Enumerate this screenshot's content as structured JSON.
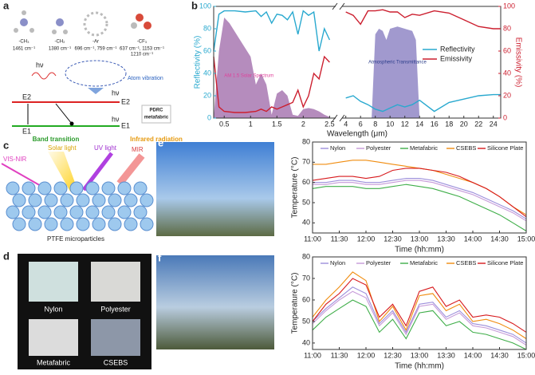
{
  "panel_a": {
    "label": "a",
    "groups": [
      "-CH₃",
      "-CH₂",
      "-Ar",
      "-CF₃"
    ],
    "wavenumbers": [
      "1461 cm⁻¹",
      "1380 cm⁻¹",
      "696 cm⁻¹, 759 cm⁻¹",
      "637 cm⁻¹, 1153 cm⁻¹",
      "1210 cm⁻¹"
    ],
    "hv": "hν",
    "atom_vibration": "Atom vibration",
    "e2": "E2",
    "e1": "E1",
    "band_transition": "Band transition",
    "pdrc": [
      "PDRC",
      "metafabric"
    ],
    "infrared": "Infrared radiation"
  },
  "panel_c": {
    "label": "c",
    "solar": "Solar light",
    "uv": "UV light",
    "mir": "MIR",
    "visnir": "VIS-NIR",
    "particles": "PTFE microparticles"
  },
  "panel_d": {
    "label": "d",
    "samples": [
      "Nylon",
      "Polyester",
      "Metafabric",
      "CSEBS"
    ]
  },
  "chart_data": [
    {
      "type": "line",
      "label": "b",
      "xlabel": "Wavelength (μm)",
      "ylabel": "Reflectivity (%)",
      "y2label": "Emissivity (%)",
      "xlim_segments": [
        [
          0.3,
          2.6
        ],
        [
          3.6,
          25
        ]
      ],
      "xticks": [
        0.5,
        1,
        1.5,
        2,
        2.5,
        4,
        6,
        8,
        10,
        12,
        14,
        16,
        18,
        20,
        22,
        24
      ],
      "ylim": [
        0,
        100
      ],
      "yticks": [
        0,
        20,
        40,
        60,
        80,
        100
      ],
      "y2lim": [
        0,
        100
      ],
      "y2ticks": [
        0,
        20,
        40,
        60,
        80,
        100
      ],
      "legend": "right",
      "series": [
        {
          "name": "Reflectivity",
          "color": "#29a9cf",
          "x": [
            0.3,
            0.4,
            0.5,
            0.7,
            0.9,
            1.1,
            1.2,
            1.3,
            1.4,
            1.5,
            1.6,
            1.7,
            1.8,
            1.9,
            2.0,
            2.1,
            2.2,
            2.3,
            2.4,
            2.5,
            4,
            5,
            6,
            7,
            8,
            9,
            10,
            11,
            12,
            13,
            14,
            16,
            18,
            20,
            22,
            24,
            25
          ],
          "values": [
            60,
            93,
            96,
            96,
            95,
            96,
            91,
            95,
            85,
            93,
            92,
            88,
            95,
            75,
            96,
            92,
            95,
            60,
            80,
            70,
            18,
            20,
            15,
            12,
            8,
            6,
            9,
            12,
            10,
            12,
            16,
            6,
            14,
            17,
            20,
            21,
            21
          ]
        },
        {
          "name": "Emissivity",
          "color": "#cc1f2f",
          "axis": "y2",
          "x": [
            0.3,
            0.4,
            0.5,
            0.7,
            0.9,
            1.1,
            1.2,
            1.3,
            1.4,
            1.5,
            1.6,
            1.7,
            1.8,
            1.9,
            2.0,
            2.1,
            2.2,
            2.3,
            2.4,
            2.5,
            4,
            5,
            6,
            7,
            8,
            9,
            10,
            11,
            12,
            13,
            14,
            16,
            18,
            20,
            22,
            24,
            25
          ],
          "values": [
            55,
            10,
            6,
            5,
            5,
            6,
            8,
            6,
            10,
            8,
            10,
            12,
            14,
            25,
            10,
            20,
            40,
            35,
            55,
            50,
            95,
            92,
            84,
            96,
            96,
            97,
            95,
            95,
            90,
            93,
            92,
            96,
            94,
            88,
            82,
            80,
            80
          ]
        }
      ],
      "areas": [
        {
          "label": "AM 1.5 Solar Spectrum",
          "color": "#8e4f9a",
          "x": [
            0.3,
            0.4,
            0.5,
            0.6,
            0.8,
            1.0,
            1.1,
            1.2,
            1.3,
            1.4,
            1.5,
            1.6,
            1.7,
            1.8,
            1.9,
            2.0,
            2.1,
            2.2,
            2.3,
            2.4,
            2.5
          ],
          "values": [
            0,
            60,
            90,
            85,
            70,
            55,
            30,
            40,
            30,
            3,
            22,
            25,
            20,
            3,
            2,
            8,
            9,
            8,
            6,
            3,
            1
          ]
        },
        {
          "label": "Atmospheric Transmittance",
          "color": "#6f63b3",
          "x": [
            7.5,
            8,
            8.5,
            9,
            9.5,
            10,
            11,
            12,
            13,
            13.5,
            14
          ],
          "values": [
            0,
            75,
            80,
            78,
            70,
            80,
            82,
            80,
            78,
            70,
            0
          ]
        }
      ]
    },
    {
      "type": "line",
      "label": "e",
      "xlabel": "Time (hh:mm)",
      "ylabel": "Temperature (°C)",
      "xlim": [
        "11:00",
        "15:00"
      ],
      "xticks": [
        "11:00",
        "11:30",
        "12:00",
        "12:30",
        "13:00",
        "13:30",
        "14:00",
        "14:30",
        "15:00"
      ],
      "ylim": [
        35,
        80
      ],
      "yticks": [
        40,
        50,
        60,
        70,
        80
      ],
      "legend": "top",
      "x": [
        "11:00",
        "11:15",
        "11:30",
        "11:45",
        "12:00",
        "12:15",
        "12:30",
        "12:45",
        "13:00",
        "13:15",
        "13:30",
        "13:45",
        "14:00",
        "14:15",
        "14:30",
        "14:45",
        "15:00"
      ],
      "series": [
        {
          "name": "Nylon",
          "color": "#9d8fdb",
          "values": [
            60,
            60,
            61,
            61,
            60,
            60,
            61,
            62,
            62,
            61,
            59,
            57,
            55,
            52,
            49,
            46,
            42
          ]
        },
        {
          "name": "Polyester",
          "color": "#c69ad9",
          "values": [
            59,
            59,
            60,
            60,
            59,
            59,
            60,
            61,
            61,
            60,
            58,
            56,
            54,
            51,
            48,
            45,
            41
          ]
        },
        {
          "name": "Metafabric",
          "color": "#3fae49",
          "values": [
            57,
            58,
            58,
            58,
            57,
            57,
            58,
            59,
            58,
            57,
            55,
            53,
            50,
            47,
            44,
            40,
            36
          ]
        },
        {
          "name": "CSEBS",
          "color": "#f08c0f",
          "values": [
            69,
            69,
            70,
            71,
            71,
            70,
            69,
            68,
            67,
            66,
            64,
            62,
            60,
            57,
            53,
            48,
            44
          ]
        },
        {
          "name": "Silicone Plate",
          "color": "#d7191c",
          "values": [
            61,
            62,
            63,
            63,
            62,
            63,
            66,
            67,
            67,
            66,
            65,
            63,
            60,
            57,
            53,
            48,
            43
          ]
        }
      ]
    },
    {
      "type": "line",
      "label": "f",
      "xlabel": "Time (hh:mm)",
      "ylabel": "Temperature (°C)",
      "xlim": [
        "11:00",
        "15:00"
      ],
      "xticks": [
        "11:00",
        "11:30",
        "12:00",
        "12:30",
        "13:00",
        "13:30",
        "14:00",
        "14:30",
        "15:00"
      ],
      "ylim": [
        37,
        80
      ],
      "yticks": [
        40,
        50,
        60,
        70,
        80
      ],
      "legend": "top",
      "x": [
        "11:00",
        "11:15",
        "11:30",
        "11:45",
        "12:00",
        "12:15",
        "12:30",
        "12:45",
        "13:00",
        "13:15",
        "13:30",
        "13:45",
        "14:00",
        "14:15",
        "14:30",
        "14:45",
        "15:00"
      ],
      "series": [
        {
          "name": "Nylon",
          "color": "#9d8fdb",
          "values": [
            50,
            56,
            61,
            66,
            63,
            49,
            55,
            45,
            58,
            59,
            52,
            55,
            49,
            48,
            46,
            44,
            40
          ]
        },
        {
          "name": "Polyester",
          "color": "#c69ad9",
          "values": [
            49,
            55,
            60,
            64,
            61,
            48,
            54,
            44,
            57,
            58,
            51,
            54,
            48,
            47,
            45,
            43,
            39
          ]
        },
        {
          "name": "Metafabric",
          "color": "#3fae49",
          "values": [
            46,
            52,
            56,
            60,
            57,
            45,
            51,
            42,
            54,
            55,
            48,
            50,
            45,
            44,
            42,
            40,
            37
          ]
        },
        {
          "name": "CSEBS",
          "color": "#f08c0f",
          "values": [
            52,
            60,
            66,
            73,
            69,
            50,
            57,
            46,
            62,
            63,
            55,
            58,
            50,
            51,
            49,
            46,
            42
          ]
        },
        {
          "name": "Silicone Plate",
          "color": "#d7191c",
          "values": [
            50,
            58,
            63,
            70,
            67,
            52,
            58,
            48,
            64,
            66,
            57,
            60,
            52,
            53,
            52,
            49,
            45
          ]
        }
      ]
    }
  ]
}
